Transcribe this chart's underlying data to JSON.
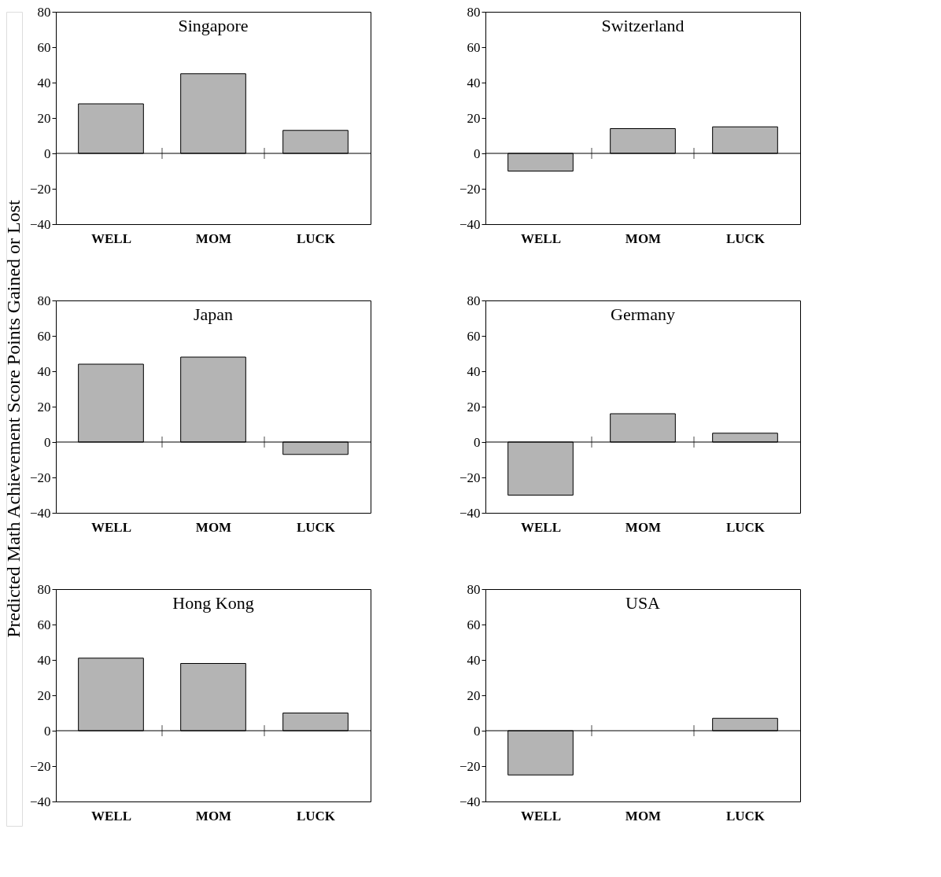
{
  "chart_data": [
    {
      "type": "bar",
      "title": "Singapore",
      "ylabel": "Predicted Math Achievement Score Points Gained or Lost",
      "categories": [
        "WELL",
        "MOM",
        "LUCK"
      ],
      "values": [
        28,
        45,
        13
      ],
      "color": "#b4b4b4",
      "ylim": [
        -40,
        80
      ],
      "yticks": [
        -40,
        -20,
        0,
        20,
        40,
        60,
        80
      ],
      "ref_lines": [
        {
          "axis": "y",
          "value": 0
        }
      ],
      "grid": false
    },
    {
      "type": "bar",
      "title": "Switzerland",
      "categories": [
        "WELL",
        "MOM",
        "LUCK"
      ],
      "values": [
        -10,
        14,
        15
      ],
      "color": "#b4b4b4",
      "ylim": [
        -40,
        80
      ],
      "yticks": [
        -40,
        -20,
        0,
        20,
        40,
        60,
        80
      ],
      "ref_lines": [
        {
          "axis": "y",
          "value": 0
        }
      ],
      "grid": false
    },
    {
      "type": "bar",
      "title": "Japan",
      "categories": [
        "WELL",
        "MOM",
        "LUCK"
      ],
      "values": [
        44,
        48,
        -7
      ],
      "color": "#b4b4b4",
      "ylim": [
        -40,
        80
      ],
      "yticks": [
        -40,
        -20,
        0,
        20,
        40,
        60,
        80
      ],
      "ref_lines": [
        {
          "axis": "y",
          "value": 0
        }
      ],
      "grid": false
    },
    {
      "type": "bar",
      "title": "Germany",
      "categories": [
        "WELL",
        "MOM",
        "LUCK"
      ],
      "values": [
        -30,
        16,
        5
      ],
      "color": "#b4b4b4",
      "ylim": [
        -40,
        80
      ],
      "yticks": [
        -40,
        -20,
        0,
        20,
        40,
        60,
        80
      ],
      "ref_lines": [
        {
          "axis": "y",
          "value": 0
        }
      ],
      "grid": false
    },
    {
      "type": "bar",
      "title": "Hong Kong",
      "categories": [
        "WELL",
        "MOM",
        "LUCK"
      ],
      "values": [
        41,
        38,
        10
      ],
      "color": "#b4b4b4",
      "ylim": [
        -40,
        80
      ],
      "yticks": [
        -40,
        -20,
        0,
        20,
        40,
        60,
        80
      ],
      "ref_lines": [
        {
          "axis": "y",
          "value": 0
        }
      ],
      "grid": false
    },
    {
      "type": "bar",
      "title": "USA",
      "categories": [
        "WELL",
        "MOM",
        "LUCK"
      ],
      "values": [
        -25,
        null,
        7
      ],
      "color": "#b4b4b4",
      "ylim": [
        -40,
        80
      ],
      "yticks": [
        -40,
        -20,
        0,
        20,
        40,
        60,
        80
      ],
      "ref_lines": [
        {
          "axis": "y",
          "value": 0
        }
      ],
      "grid": false
    }
  ]
}
